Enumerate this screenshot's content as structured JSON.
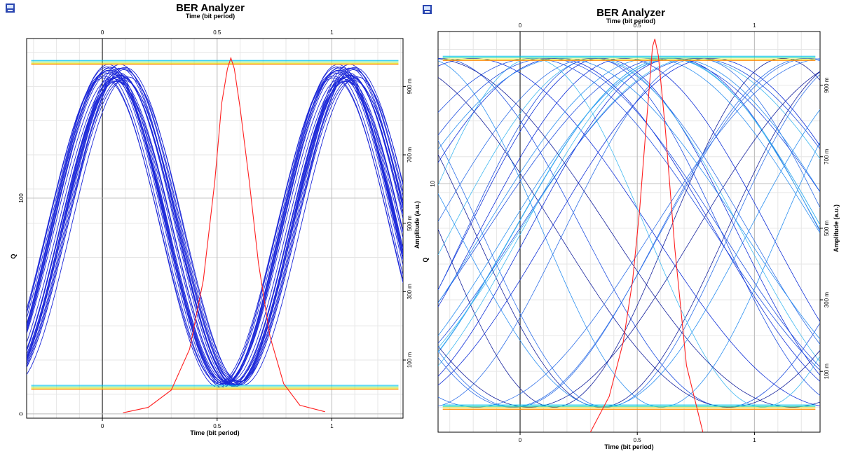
{
  "chart_data": [
    {
      "type": "line",
      "title": "BER Analyzer",
      "top_xlabel": "Time (bit period)",
      "xlabel": "Time (bit period)",
      "ylabel_left": "Q",
      "ylabel_right": "Amplitude (a.u.)",
      "x_ticks": [
        "0",
        "0.5",
        "1"
      ],
      "x_tick_values": [
        0,
        0.5,
        1
      ],
      "xlim": [
        -0.33,
        1.31
      ],
      "left_y_scale": "linear",
      "left_y_ticks": [
        "0",
        "100"
      ],
      "left_y_tick_values": [
        0,
        100
      ],
      "left_ylim": [
        -2,
        174
      ],
      "right_y_ticks": [
        "100 m",
        "300 m",
        "500 m",
        "700 m",
        "900 m"
      ],
      "right_y_tick_values": [
        0.1,
        0.3,
        0.5,
        0.7,
        0.9
      ],
      "right_ylim": [
        -0.07,
        1.04
      ],
      "grid": true,
      "icon": "scope-icon",
      "eye": {
        "level_high": 0.97,
        "level_low": 0.02,
        "crossings_x": [
          0.04,
          1.05
        ],
        "crossing_level": 0.48,
        "trace_count": 28,
        "trace_color": "#1c28d8",
        "level_colors": [
          "#ff8a00",
          "#e8d800",
          "#40e0a0",
          "#00c0f0"
        ]
      },
      "q_curve": {
        "color": "#ff2020",
        "x": [
          0.09,
          0.2,
          0.3,
          0.38,
          0.44,
          0.49,
          0.52,
          0.545,
          0.56,
          0.575,
          0.6,
          0.64,
          0.68,
          0.73,
          0.79,
          0.86,
          0.97
        ],
        "y": [
          0.5,
          3,
          11,
          30,
          62,
          108,
          144,
          160,
          165,
          160,
          142,
          108,
          70,
          36,
          14,
          4,
          1
        ]
      }
    },
    {
      "type": "line",
      "title": "BER Analyzer",
      "top_xlabel": "Time (bit period)",
      "xlabel": "Time (bit period)",
      "ylabel_left": "Q",
      "ylabel_right": "Amplitude (a.u.)",
      "x_ticks": [
        "0",
        "0.5",
        "1"
      ],
      "x_tick_values": [
        0,
        0.5,
        1
      ],
      "xlim": [
        -0.35,
        1.28
      ],
      "left_y_scale": "log",
      "left_y_ticks": [
        "10"
      ],
      "left_y_tick_values": [
        10
      ],
      "left_ylim": [
        0.68,
        52
      ],
      "right_y_ticks": [
        "100 m",
        "300 m",
        "500 m",
        "700 m",
        "900 m"
      ],
      "right_y_tick_values": [
        0.1,
        0.3,
        0.5,
        0.7,
        0.9
      ],
      "right_ylim": [
        -0.07,
        1.05
      ],
      "grid": true,
      "icon": "scope-icon",
      "eye": {
        "level_high": 0.975,
        "level_low": 0.0,
        "trace_count": 34,
        "trace_colors": [
          "#1030d8",
          "#2050e0",
          "#3070e8",
          "#2b8ff0",
          "#40b8f0",
          "#14209c"
        ],
        "level_colors": [
          "#ff8a00",
          "#e8d800",
          "#40e0a0",
          "#00c0f0"
        ]
      },
      "q_curve": {
        "color": "#ff2020",
        "x": [
          0.3,
          0.38,
          0.44,
          0.48,
          0.51,
          0.535,
          0.555,
          0.565,
          0.575,
          0.59,
          0.62,
          0.66,
          0.71,
          0.78
        ],
        "y": [
          0.68,
          1.0,
          1.8,
          3.5,
          7.5,
          17,
          32,
          44,
          48,
          40,
          18,
          5,
          1.4,
          0.68
        ]
      }
    }
  ]
}
